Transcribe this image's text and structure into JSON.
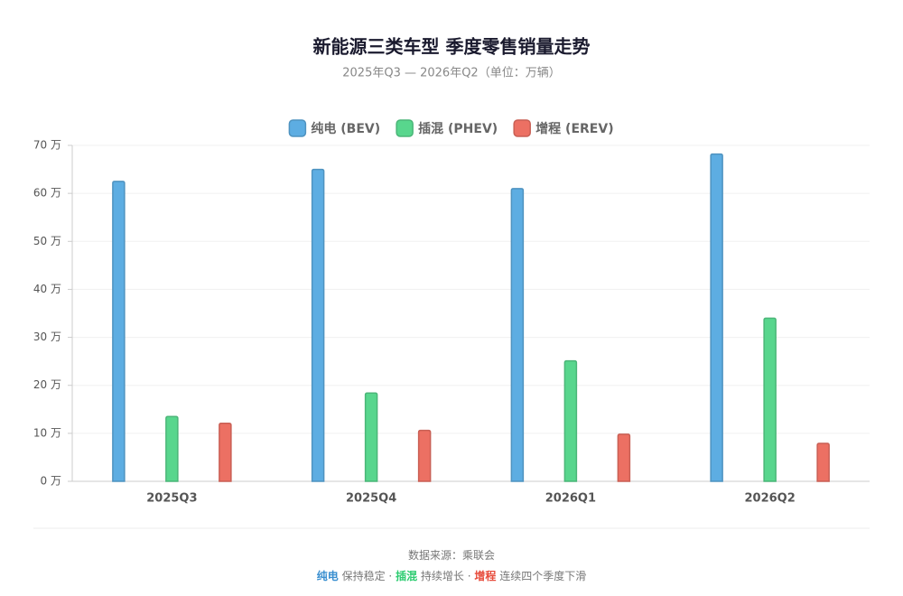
{
  "chart_data": {
    "type": "bar",
    "title": "新能源三类车型 季度零售销量走势",
    "subtitle": "2025年Q3 — 2026年Q2（单位：万辆）",
    "categories": [
      "2025Q3",
      "2025Q4",
      "2026Q1",
      "2026Q2"
    ],
    "series": [
      {
        "name": "纯电 (BEV)",
        "color": "#5dade2",
        "values": [
          62.5,
          65,
          61,
          68.2
        ]
      },
      {
        "name": "插混 (PHEV)",
        "color": "#58d68d",
        "values": [
          13.5,
          18.4,
          25.1,
          34
        ]
      },
      {
        "name": "增程 (EREV)",
        "color": "#ec7063",
        "values": [
          12.1,
          10.6,
          9.8,
          7.9
        ]
      }
    ],
    "ylim": [
      0,
      70
    ],
    "yticks": [
      {
        "value": 0,
        "label": "0 万"
      },
      {
        "value": 10,
        "label": "10 万"
      },
      {
        "value": 20,
        "label": "20 万"
      },
      {
        "value": 30,
        "label": "30 万"
      },
      {
        "value": 40,
        "label": "40 万"
      },
      {
        "value": 50,
        "label": "50 万"
      },
      {
        "value": 60,
        "label": "60 万"
      },
      {
        "value": 70,
        "label": "70 万"
      }
    ],
    "grid": true,
    "source": "数据来源：乘联会",
    "notes": [
      {
        "label": "纯电",
        "text": "保持稳定 ·"
      },
      {
        "label": "插混",
        "text": "持续增长 ·"
      },
      {
        "label": "增程",
        "text": "连续四个季度下滑"
      }
    ]
  }
}
